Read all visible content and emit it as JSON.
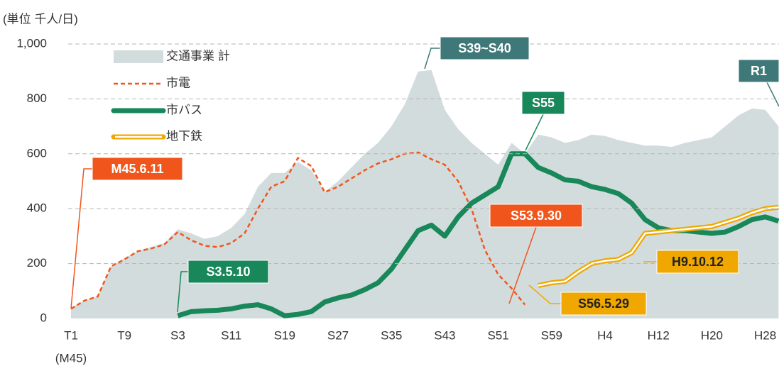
{
  "chart_data": {
    "type": "area_line",
    "unit_label": "(単位 千人/日)",
    "categories": [
      "T1",
      null,
      null,
      null,
      "T9",
      null,
      null,
      null,
      "S3",
      null,
      null,
      null,
      "S11",
      null,
      null,
      null,
      "S19",
      null,
      null,
      null,
      "S27",
      null,
      null,
      null,
      "S35",
      null,
      null,
      null,
      "S43",
      null,
      null,
      null,
      "S51",
      null,
      null,
      null,
      "S59",
      null,
      null,
      null,
      "H4",
      null,
      null,
      null,
      "H12",
      null,
      null,
      null,
      "H20",
      null,
      null,
      null,
      "H28",
      null
    ],
    "x_sublabel": "(M45)",
    "ylim": [
      0,
      1000
    ],
    "yticks": [
      0,
      200,
      400,
      600,
      800,
      {
        "value": 1000,
        "label": "1,000"
      }
    ],
    "grid": true,
    "series": [
      {
        "name": "交通事業 計",
        "kind": "area",
        "color": "#d3dcdc",
        "values": [
          40,
          65,
          80,
          190,
          220,
          245,
          260,
          275,
          325,
          310,
          290,
          300,
          330,
          380,
          480,
          530,
          530,
          570,
          540,
          460,
          500,
          550,
          600,
          640,
          700,
          780,
          900,
          905,
          760,
          690,
          640,
          600,
          560,
          640,
          600,
          670,
          660,
          640,
          650,
          670,
          665,
          650,
          640,
          630,
          630,
          625,
          640,
          650,
          660,
          700,
          740,
          765,
          760,
          700
        ]
      },
      {
        "name": "市電",
        "kind": "dashed",
        "color": "#f0561c",
        "values": [
          35,
          65,
          80,
          190,
          215,
          245,
          255,
          270,
          315,
          285,
          265,
          260,
          275,
          310,
          400,
          480,
          500,
          585,
          555,
          460,
          480,
          510,
          540,
          565,
          580,
          600,
          605,
          580,
          560,
          500,
          400,
          250,
          160,
          110,
          50,
          null,
          null,
          null,
          null,
          null,
          null,
          null,
          null,
          null,
          null,
          null,
          null,
          null,
          null,
          null,
          null,
          null,
          null,
          null
        ]
      },
      {
        "name": "市バス",
        "kind": "thick",
        "color": "#18875a",
        "values": [
          null,
          null,
          null,
          null,
          null,
          null,
          null,
          null,
          10,
          25,
          28,
          30,
          35,
          45,
          50,
          35,
          10,
          15,
          25,
          60,
          75,
          85,
          105,
          130,
          180,
          250,
          320,
          340,
          300,
          370,
          420,
          450,
          480,
          600,
          600,
          550,
          530,
          505,
          500,
          480,
          470,
          455,
          420,
          360,
          330,
          320,
          320,
          315,
          310,
          315,
          335,
          360,
          370,
          355
        ]
      },
      {
        "name": "地下鉄",
        "kind": "double",
        "color": "#f0a800",
        "values": [
          null,
          null,
          null,
          null,
          null,
          null,
          null,
          null,
          null,
          null,
          null,
          null,
          null,
          null,
          null,
          null,
          null,
          null,
          null,
          null,
          null,
          null,
          null,
          null,
          null,
          null,
          null,
          null,
          null,
          null,
          null,
          null,
          null,
          null,
          null,
          120,
          130,
          135,
          170,
          200,
          210,
          215,
          240,
          310,
          315,
          320,
          325,
          330,
          335,
          350,
          365,
          385,
          400,
          405
        ]
      }
    ],
    "annotations": [
      {
        "text": "M45.6.11",
        "color": "#f0561c",
        "text_color": "#ffffff"
      },
      {
        "text": "S3.5.10",
        "color": "#18875a",
        "text_color": "#ffffff"
      },
      {
        "text": "S39~S40",
        "color": "#3f7878",
        "text_color": "#ffffff"
      },
      {
        "text": "S55",
        "color": "#18875a",
        "text_color": "#ffffff"
      },
      {
        "text": "S53.9.30",
        "color": "#f0561c",
        "text_color": "#ffffff"
      },
      {
        "text": "H9.10.12",
        "color": "#f0a800",
        "text_color": "#222222"
      },
      {
        "text": "S56.5.29",
        "color": "#f0a800",
        "text_color": "#222222"
      },
      {
        "text": "R1",
        "color": "#3f7878",
        "text_color": "#ffffff"
      }
    ]
  }
}
